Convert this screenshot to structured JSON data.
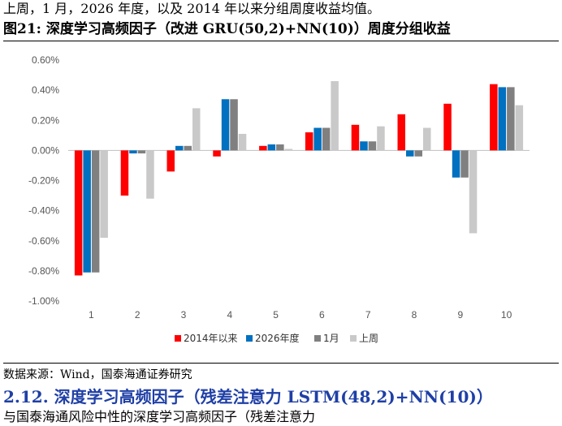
{
  "intro_text": "上周，1 月，2026 年度，以及 2014 年以来分组周度收益均值。",
  "figure_title": "图21: 深度学习高频因子（改进 GRU(50,2)+NN(10)）周度分组收益",
  "source_text": "数据来源：Wind，国泰海通证券研究",
  "section_heading": "2.12. 深度学习高频因子（残差注意力 LSTM(48,2)+NN(10)）",
  "cut_line_text": "与国泰海通风险中性的深度学习高频因子（残差注意力",
  "chart_data": {
    "type": "bar",
    "title": "",
    "xlabel": "",
    "ylabel": "",
    "categories": [
      "1",
      "2",
      "3",
      "4",
      "5",
      "6",
      "7",
      "8",
      "9",
      "10"
    ],
    "ylim": [
      -1.0,
      0.6
    ],
    "yticks": [
      "0.60%",
      "0.40%",
      "0.20%",
      "0.00%",
      "-0.20%",
      "-0.40%",
      "-0.60%",
      "-0.80%",
      "-1.00%"
    ],
    "ytick_values": [
      0.6,
      0.4,
      0.2,
      0.0,
      -0.2,
      -0.4,
      -0.6,
      -0.8,
      -1.0
    ],
    "grid": false,
    "legend_position": "bottom",
    "series": [
      {
        "name": "2014年以来",
        "color": "#ff0000",
        "values": [
          -0.83,
          -0.3,
          -0.14,
          -0.04,
          0.03,
          0.12,
          0.17,
          0.24,
          0.31,
          0.44
        ]
      },
      {
        "name": "2026年度",
        "color": "#0070c0",
        "values": [
          -0.81,
          -0.02,
          0.03,
          0.34,
          0.04,
          0.15,
          0.06,
          -0.04,
          -0.18,
          0.42
        ]
      },
      {
        "name": "1月",
        "color": "#808080",
        "values": [
          -0.81,
          -0.02,
          0.03,
          0.34,
          0.04,
          0.15,
          0.06,
          -0.04,
          -0.18,
          0.42
        ]
      },
      {
        "name": "上周",
        "color": "#c9c9c9",
        "values": [
          -0.58,
          -0.32,
          0.28,
          0.11,
          0.01,
          0.46,
          0.16,
          0.15,
          -0.55,
          0.3
        ]
      }
    ]
  }
}
